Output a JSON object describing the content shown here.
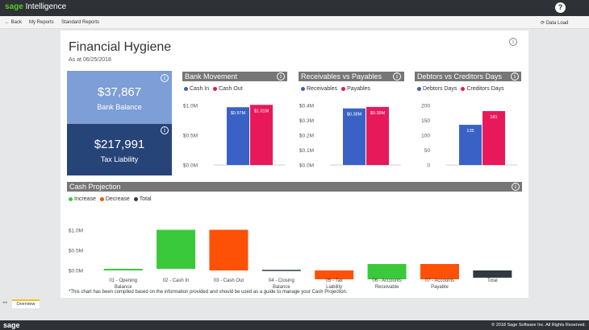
{
  "app": {
    "brand": "sage",
    "product": "Intelligence",
    "help_label": "?"
  },
  "nav": {
    "back": "Back",
    "my_reports": "My Reports",
    "standard_reports": "Standard Reports",
    "data_load": "Data Load"
  },
  "report": {
    "title": "Financial Hygiene",
    "as_at": "As at 06/25/2018",
    "info_label": "i"
  },
  "kpis": [
    {
      "value": "$37,867",
      "label": "Bank Balance",
      "color": "#7d9ed6"
    },
    {
      "value": "$217,991",
      "label": "Tax Liability",
      "color": "#264478"
    }
  ],
  "colors": {
    "blue": "#3a62c6",
    "pink": "#e8195b",
    "green": "#3ac93a",
    "orange": "#fc5107",
    "dark": "#333940"
  },
  "charts": {
    "bank": {
      "title": "Bank Movement",
      "legend": [
        "Cash In",
        "Cash Out"
      ],
      "chart_data": {
        "type": "bar",
        "ylim": [
          0,
          1.0
        ],
        "ticks": [
          "$0.0M",
          "$0.5M",
          "$1.0M"
        ],
        "series": [
          {
            "name": "Cash In",
            "value": 0.97,
            "label": "$0.97M"
          },
          {
            "name": "Cash Out",
            "value": 1.01,
            "label": "$1.01M"
          }
        ]
      }
    },
    "recv": {
      "title": "Receivables vs Payables",
      "legend": [
        "Receivables",
        "Payables"
      ],
      "chart_data": {
        "type": "bar",
        "ylim": [
          0,
          0.4
        ],
        "ticks": [
          "$0.0M",
          "$0.1M",
          "$0.2M",
          "$0.3M",
          "$0.4M"
        ],
        "series": [
          {
            "name": "Receivables",
            "value": 0.38,
            "label": "$0.38M"
          },
          {
            "name": "Payables",
            "value": 0.39,
            "label": "$0.39M"
          }
        ]
      }
    },
    "days": {
      "title": "Debtors vs Creditors Days",
      "legend": [
        "Debtors Days",
        "Creditors Days"
      ],
      "chart_data": {
        "type": "bar",
        "ylim": [
          0,
          200
        ],
        "ticks": [
          "0",
          "50",
          "100",
          "150",
          "200"
        ],
        "series": [
          {
            "name": "Debtors Days",
            "value": 135,
            "label": "135"
          },
          {
            "name": "Creditors Days",
            "value": 181,
            "label": "181"
          }
        ]
      }
    },
    "cash": {
      "title": "Cash Projection",
      "legend": [
        "Increase",
        "Decrease",
        "Total"
      ],
      "chart_data": {
        "type": "bar",
        "ylim": [
          0,
          1.0
        ],
        "ticks": [
          "$0.0M",
          "$0.5M",
          "$1.0M"
        ],
        "steps": [
          {
            "category": "01 - Opening Balance",
            "start": 0,
            "end": 0.04,
            "kind": "increase"
          },
          {
            "category": "02 - Cash In",
            "start": 0.04,
            "end": 1.01,
            "kind": "increase"
          },
          {
            "category": "03 - Cash Out",
            "start": 1.01,
            "end": 0.0,
            "kind": "decrease"
          },
          {
            "category": "04 - Closing Balance",
            "start": 0,
            "end": 0.0,
            "kind": "total"
          },
          {
            "category": "05 - Tax Liability",
            "start": 0.0,
            "end": -0.22,
            "kind": "decrease"
          },
          {
            "category": "06 - Accounts Receivable",
            "start": -0.22,
            "end": 0.16,
            "kind": "increase"
          },
          {
            "category": "07 - Accounts Payable",
            "start": 0.16,
            "end": -0.22,
            "kind": "decrease"
          },
          {
            "category": "Total",
            "start": 0,
            "end": -0.18,
            "kind": "total"
          }
        ]
      }
    }
  },
  "footnote": "*This chart has been compiled based on the information provided and should be used as a guide to manage your Cash Projection.",
  "tabs": {
    "overview": "Overview"
  },
  "footer": {
    "logo": "sage",
    "copyright": "© 2018 Sage Software Inc. All Rights Reserved."
  }
}
